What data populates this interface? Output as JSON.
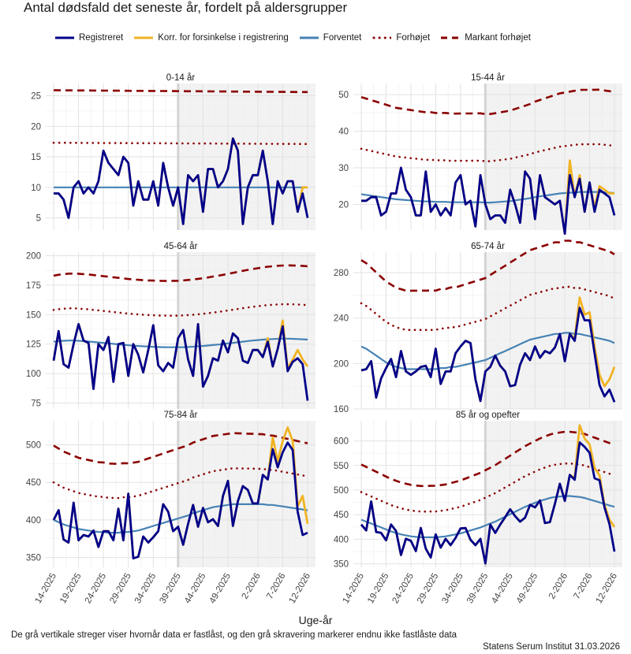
{
  "header": {
    "title": "Antal dødsfald det seneste år, fordelt på aldersgrupper",
    "x_axis_title": "Uge-år",
    "note": "De grå vertikale streger viser hvornår data er fastlåst, og den grå skravering markerer endnu ikke fastlåste data",
    "source": "Statens Serum Institut  31.03.2026"
  },
  "legend": [
    {
      "key": "registered",
      "label": "Registreret",
      "color": "#00008b",
      "style": "solid"
    },
    {
      "key": "corrected",
      "label": "Korr. for forsinkelse i registrering",
      "color": "#f0b323",
      "style": "solid"
    },
    {
      "key": "expected",
      "label": "Forventet",
      "color": "#4682b4",
      "style": "solid"
    },
    {
      "key": "elevated",
      "label": "Forhøjet",
      "color": "#8b0000",
      "style": "dotted"
    },
    {
      "key": "marked",
      "label": "Markant forhøjet",
      "color": "#8b0000",
      "style": "dashed"
    }
  ],
  "chart_data": {
    "type": "line",
    "x_tick_labels": [
      "14-2025",
      "19-2025",
      "24-2025",
      "29-2025",
      "34-2025",
      "39-2025",
      "44-2025",
      "49-2025",
      "2-2026",
      "7-2026",
      "12-2026"
    ],
    "x_tick_indices": [
      0,
      5,
      10,
      15,
      20,
      25,
      30,
      35,
      41,
      46,
      51
    ],
    "n_weeks": 52,
    "locked_index": 25,
    "panels": [
      {
        "title": "0-14 år",
        "ylim": [
          3,
          27
        ],
        "yticks": [
          5,
          10,
          15,
          20,
          25
        ],
        "registered": [
          9,
          9,
          8,
          5,
          10,
          11,
          9,
          10,
          9,
          11,
          16,
          14,
          13,
          12,
          15,
          14,
          7,
          11,
          8,
          8,
          11,
          7,
          14,
          10,
          7,
          10,
          4,
          12,
          11,
          12,
          6,
          13,
          13,
          10,
          11,
          13,
          18,
          16,
          4,
          10,
          12,
          12,
          16,
          11,
          4,
          11,
          9,
          11,
          11,
          6,
          9,
          5
        ],
        "corrected": [
          9,
          9,
          8,
          5,
          10,
          11,
          9,
          10,
          9,
          11,
          16,
          14,
          13,
          12,
          15,
          14,
          7,
          11,
          8,
          8,
          11,
          7,
          14,
          10,
          7,
          10,
          4,
          12,
          11,
          12,
          6,
          13,
          13,
          10,
          11,
          13,
          18,
          16,
          4,
          10,
          12,
          12,
          16,
          11,
          4,
          11,
          9,
          11,
          11,
          6,
          10,
          10
        ],
        "expected": [
          10,
          10,
          10,
          10,
          10,
          10,
          10,
          10,
          10,
          10,
          10,
          10,
          10,
          10,
          10,
          10,
          10,
          10,
          10,
          10,
          10,
          10,
          10,
          10,
          10,
          10,
          10,
          10,
          10,
          10,
          10,
          10,
          10,
          10,
          10,
          10,
          10,
          10,
          10,
          10,
          10,
          10,
          10,
          10,
          10,
          10,
          10,
          10,
          10,
          10,
          10,
          10
        ],
        "elevated_start": 17.3,
        "elevated_end": 17.1,
        "marked_start": 25.9,
        "marked_end": 25.6
      },
      {
        "title": "15-44 år",
        "ylim": [
          13,
          53
        ],
        "yticks": [
          20,
          30,
          40,
          50
        ],
        "registered": [
          21,
          21,
          22,
          22,
          17,
          18,
          23,
          23,
          30,
          24,
          22,
          17,
          17,
          29,
          18,
          20,
          17,
          19,
          17,
          26,
          28,
          20,
          21,
          14,
          28,
          20,
          16,
          17,
          17,
          15,
          24,
          20,
          15,
          29,
          27,
          16,
          28,
          22,
          21,
          20,
          21,
          12,
          28,
          22,
          27,
          18,
          26,
          18,
          24,
          23,
          22,
          17
        ],
        "corrected": [
          21,
          21,
          22,
          22,
          17,
          18,
          23,
          23,
          30,
          24,
          22,
          17,
          17,
          29,
          18,
          20,
          17,
          19,
          17,
          26,
          28,
          20,
          21,
          14,
          28,
          20,
          16,
          17,
          17,
          15,
          24,
          20,
          15,
          29,
          27,
          16,
          28,
          22,
          21,
          20,
          21,
          12,
          32,
          22,
          28,
          18,
          26,
          19,
          25,
          24,
          23,
          23
        ],
        "expected": [
          22.8,
          22.6,
          22.4,
          22.2,
          22,
          21.8,
          21.6,
          21.4,
          21.3,
          21.2,
          21.1,
          21,
          20.9,
          20.8,
          20.8,
          20.7,
          20.7,
          20.7,
          20.6,
          20.6,
          20.6,
          20.6,
          20.6,
          20.6,
          20.6,
          20.5,
          20.5,
          20.6,
          20.7,
          20.8,
          20.9,
          21.1,
          21.3,
          21.5,
          21.7,
          22,
          22.2,
          22.4,
          22.6,
          22.8,
          23,
          23.1,
          23.2,
          23.3,
          23.4,
          23.4,
          23.4,
          23.4,
          23.4,
          23.3,
          23.2,
          23.1
        ],
        "elevated_start": 35.2,
        "elevated_end": 36.0,
        "marked_start": 49.3,
        "marked_end": 50.7
      },
      {
        "title": "45-64 år",
        "ylim": [
          70,
          203
        ],
        "yticks": [
          75,
          100,
          125,
          150,
          175,
          200
        ],
        "registered": [
          111,
          136,
          108,
          105,
          125,
          142,
          128,
          126,
          87,
          125,
          120,
          131,
          93,
          125,
          126,
          98,
          125,
          116,
          101,
          120,
          141,
          107,
          102,
          109,
          105,
          130,
          137,
          112,
          98,
          142,
          89,
          98,
          113,
          111,
          128,
          118,
          134,
          130,
          111,
          109,
          120,
          120,
          114,
          127,
          106,
          121,
          140,
          102,
          110,
          113,
          108,
          77
        ],
        "corrected": [
          111,
          136,
          108,
          105,
          125,
          142,
          128,
          126,
          87,
          125,
          120,
          131,
          93,
          125,
          126,
          98,
          125,
          116,
          101,
          120,
          141,
          107,
          102,
          109,
          105,
          130,
          137,
          112,
          98,
          142,
          89,
          98,
          113,
          111,
          128,
          118,
          134,
          130,
          111,
          109,
          120,
          120,
          114,
          130,
          106,
          121,
          145,
          104,
          112,
          120,
          112,
          106
        ],
        "expected": [
          127,
          127.5,
          127.8,
          128,
          128,
          127.8,
          127.5,
          127.2,
          126.8,
          126.4,
          126,
          125.6,
          125.2,
          124.8,
          124.4,
          124,
          123.7,
          123.4,
          123.1,
          122.9,
          122.7,
          122.5,
          122.4,
          122.3,
          122.3,
          122.3,
          122.4,
          122.6,
          122.8,
          123.1,
          123.4,
          123.8,
          124.2,
          124.6,
          125.1,
          125.6,
          126.1,
          126.6,
          127.1,
          127.6,
          128,
          128.4,
          128.8,
          129.1,
          129.3,
          129.5,
          129.6,
          129.6,
          129.5,
          129.3,
          129.1,
          128.8
        ],
        "elevated_start": 154,
        "elevated_end": 158,
        "marked_start": 183,
        "marked_end": 191
      },
      {
        "title": "65-74 år",
        "ylim": [
          160,
          298
        ],
        "yticks": [
          160,
          200,
          240,
          280
        ],
        "registered": [
          194,
          195,
          202,
          170,
          187,
          196,
          204,
          188,
          211,
          193,
          190,
          193,
          197,
          198,
          188,
          213,
          182,
          193,
          193,
          209,
          215,
          220,
          218,
          186,
          167,
          193,
          197,
          207,
          198,
          193,
          180,
          181,
          199,
          209,
          203,
          215,
          205,
          211,
          209,
          214,
          226,
          202,
          226,
          220,
          249,
          238,
          238,
          209,
          181,
          171,
          177,
          166
        ],
        "corrected": [
          194,
          195,
          202,
          170,
          187,
          196,
          204,
          188,
          211,
          193,
          190,
          193,
          197,
          198,
          188,
          213,
          182,
          193,
          193,
          209,
          215,
          220,
          218,
          186,
          167,
          193,
          197,
          207,
          198,
          193,
          180,
          181,
          199,
          209,
          203,
          215,
          205,
          211,
          209,
          214,
          226,
          202,
          226,
          222,
          258,
          243,
          245,
          215,
          190,
          180,
          186,
          197
        ],
        "expected": [
          215,
          213,
          210,
          207,
          204,
          201,
          199,
          197,
          196,
          195,
          195,
          195,
          195,
          195,
          195,
          195,
          196,
          196,
          197,
          197,
          198,
          199,
          200,
          201,
          202,
          203,
          205,
          207,
          209,
          211,
          213,
          215,
          217,
          219,
          221,
          222,
          223,
          224,
          225,
          226,
          226,
          227,
          227,
          226,
          226,
          225,
          224,
          223,
          222,
          221,
          220,
          218
        ],
        "elevated_start": 253,
        "elevated_end": 257,
        "marked_start": 291,
        "marked_end": 296
      },
      {
        "title": "75-84 år",
        "ylim": [
          337,
          532
        ],
        "yticks": [
          350,
          400,
          450,
          500
        ],
        "registered": [
          400,
          413,
          374,
          370,
          423,
          373,
          380,
          378,
          386,
          364,
          385,
          385,
          373,
          415,
          373,
          435,
          349,
          351,
          378,
          370,
          377,
          385,
          421,
          411,
          385,
          391,
          367,
          395,
          420,
          391,
          416,
          397,
          401,
          392,
          432,
          452,
          392,
          425,
          445,
          440,
          422,
          422,
          460,
          454,
          494,
          470,
          490,
          503,
          493,
          411,
          380,
          383
        ],
        "corrected": [
          400,
          413,
          374,
          370,
          423,
          373,
          380,
          378,
          386,
          364,
          385,
          385,
          373,
          415,
          373,
          435,
          349,
          351,
          378,
          370,
          377,
          385,
          421,
          411,
          385,
          391,
          367,
          395,
          420,
          391,
          416,
          397,
          401,
          392,
          432,
          452,
          392,
          425,
          445,
          440,
          422,
          422,
          460,
          454,
          510,
          478,
          505,
          523,
          505,
          418,
          432,
          395
        ],
        "expected": [
          400,
          397,
          394,
          392,
          390,
          388,
          387,
          386,
          385,
          384,
          384,
          383,
          383,
          383,
          384,
          384,
          385,
          386,
          388,
          390,
          392,
          394,
          396,
          398,
          400,
          402,
          404,
          406,
          409,
          411,
          413,
          415,
          417,
          418,
          419,
          420,
          421,
          421,
          421,
          421,
          421,
          421,
          421,
          420,
          420,
          419,
          418,
          417,
          416,
          415,
          414,
          413
        ],
        "elevated_start": 450,
        "elevated_end": 458,
        "marked_start": 499,
        "marked_end": 502
      },
      {
        "title": "85 år og opefter",
        "ylim": [
          343,
          641
        ],
        "yticks": [
          350,
          400,
          450,
          500,
          550,
          600
        ],
        "registered": [
          430,
          418,
          477,
          415,
          413,
          398,
          430,
          417,
          368,
          401,
          397,
          376,
          423,
          381,
          363,
          410,
          383,
          401,
          388,
          403,
          422,
          423,
          399,
          388,
          401,
          351,
          430,
          413,
          430,
          445,
          461,
          447,
          436,
          444,
          470,
          465,
          479,
          433,
          435,
          472,
          513,
          478,
          531,
          521,
          597,
          588,
          576,
          524,
          520,
          465,
          431,
          375
        ],
        "corrected": [
          430,
          418,
          477,
          415,
          413,
          398,
          430,
          417,
          368,
          401,
          397,
          376,
          423,
          381,
          363,
          410,
          383,
          401,
          388,
          403,
          422,
          423,
          399,
          388,
          401,
          351,
          430,
          413,
          430,
          445,
          461,
          447,
          436,
          444,
          470,
          465,
          479,
          433,
          435,
          472,
          513,
          478,
          531,
          525,
          632,
          605,
          593,
          545,
          530,
          470,
          440,
          425
        ],
        "expected": [
          440,
          436,
          432,
          428,
          424,
          420,
          416,
          413,
          410,
          408,
          406,
          405,
          404,
          404,
          404,
          404,
          405,
          406,
          408,
          410,
          412,
          415,
          418,
          421,
          424,
          428,
          432,
          436,
          441,
          446,
          451,
          456,
          461,
          466,
          470,
          474,
          478,
          481,
          484,
          486,
          487,
          488,
          488,
          487,
          486,
          484,
          481,
          478,
          475,
          472,
          469,
          466
        ],
        "elevated_start": 496,
        "elevated_end": 530,
        "marked_start": 552,
        "marked_end": 592
      }
    ]
  }
}
